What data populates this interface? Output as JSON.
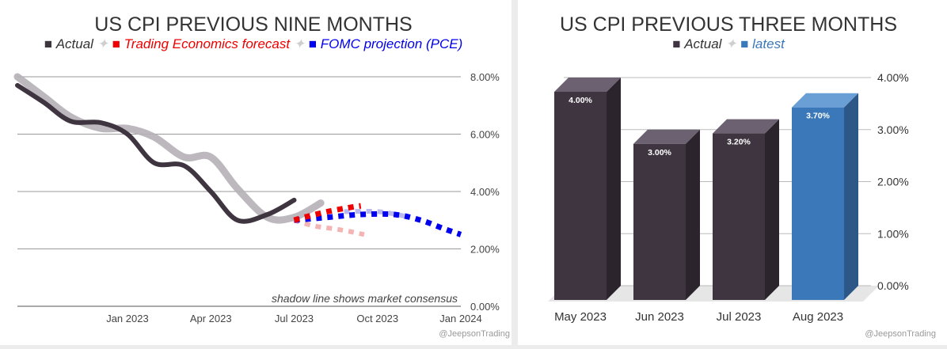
{
  "chart_data": [
    {
      "type": "line",
      "title": "US CPI PREVIOUS NINE MONTHS",
      "legend": [
        {
          "name": "Actual",
          "color": "#3f3540",
          "marker": "square"
        },
        {
          "name": "Trading Economics forecast",
          "color": "#ee0000",
          "marker": "square"
        },
        {
          "name": "FOMC projection (PCE)",
          "color": "#0000ee",
          "marker": "square"
        }
      ],
      "legend_separator": "✦",
      "x_domain": [
        2022.67,
        2024.0
      ],
      "xticks": [
        {
          "label": "Jan 2023",
          "x": 2023.0
        },
        {
          "label": "Apr 2023",
          "x": 2023.25
        },
        {
          "label": "Jul 2023",
          "x": 2023.5
        },
        {
          "label": "Oct 2023",
          "x": 2023.75
        },
        {
          "label": "Jan 2024",
          "x": 2024.0
        }
      ],
      "ylim": [
        0,
        8
      ],
      "yticks": [
        "0.00%",
        "2.00%",
        "4.00%",
        "6.00%",
        "8.00%"
      ],
      "ytick_values": [
        0,
        2,
        4,
        6,
        8
      ],
      "annotation": "shadow line shows market consensus",
      "watermark": "@JeepsonTrading",
      "series": [
        {
          "name": "Consensus (shadow)",
          "color": "#b5b0b6",
          "points": [
            [
              2022.67,
              8.0
            ],
            [
              2022.75,
              7.3
            ],
            [
              2022.83,
              6.6
            ],
            [
              2022.92,
              6.2
            ],
            [
              2023.0,
              6.2
            ],
            [
              2023.08,
              5.9
            ],
            [
              2023.17,
              5.2
            ],
            [
              2023.25,
              5.2
            ],
            [
              2023.33,
              4.1
            ],
            [
              2023.42,
              3.1
            ],
            [
              2023.5,
              3.1
            ],
            [
              2023.58,
              3.6
            ]
          ]
        },
        {
          "name": "Actual",
          "color": "#3f3540",
          "points": [
            [
              2022.67,
              7.7
            ],
            [
              2022.75,
              7.1
            ],
            [
              2022.83,
              6.45
            ],
            [
              2022.92,
              6.4
            ],
            [
              2023.0,
              6.0
            ],
            [
              2023.08,
              5.0
            ],
            [
              2023.17,
              4.9
            ],
            [
              2023.25,
              4.0
            ],
            [
              2023.33,
              3.0
            ],
            [
              2023.42,
              3.2
            ],
            [
              2023.5,
              3.7
            ]
          ]
        },
        {
          "name": "Trading Economics forecast",
          "color": "#ee0000",
          "points": [
            [
              2023.5,
              3.0
            ],
            [
              2023.53,
              3.1
            ],
            [
              2023.6,
              3.3
            ],
            [
              2023.67,
              3.45
            ],
            [
              2023.7,
              3.5
            ]
          ]
        },
        {
          "name": "Trading Economics forecast (consensus shadow)",
          "color": "#f5b4b4",
          "points": [
            [
              2023.5,
              3.0
            ],
            [
              2023.56,
              2.8
            ],
            [
              2023.62,
              2.7
            ],
            [
              2023.67,
              2.6
            ],
            [
              2023.71,
              2.5
            ]
          ]
        },
        {
          "name": "FOMC projection (PCE)",
          "color": "#0000ee",
          "points": [
            [
              2023.5,
              3.0
            ],
            [
              2023.6,
              3.1
            ],
            [
              2023.7,
              3.2
            ],
            [
              2023.8,
              3.2
            ],
            [
              2023.88,
              3.0
            ],
            [
              2023.95,
              2.7
            ],
            [
              2024.0,
              2.5
            ]
          ]
        },
        {
          "name": "FOMC projection (consensus shadow)",
          "color": "#b9b9f0",
          "points": [
            [
              2023.65,
              3.3
            ],
            [
              2023.75,
              3.3
            ],
            [
              2023.83,
              3.15
            ]
          ]
        }
      ]
    },
    {
      "type": "bar",
      "title": "US CPI PREVIOUS THREE MONTHS",
      "legend": [
        {
          "name": "Actual",
          "color": "#3f3540",
          "marker": "square"
        },
        {
          "name": "latest",
          "color": "#3b78ba",
          "marker": "square"
        }
      ],
      "legend_separator": "✦",
      "categories": [
        "May 2023",
        "Jun 2023",
        "Jul 2023",
        "Aug 2023"
      ],
      "values": [
        4.0,
        3.0,
        3.2,
        3.7
      ],
      "labels": [
        "4.00%",
        "3.00%",
        "3.20%",
        "3.70%"
      ],
      "series_of_bar": [
        "Actual",
        "Actual",
        "Actual",
        "latest"
      ],
      "ylim": [
        0,
        4
      ],
      "yticks": [
        "0.00%",
        "1.00%",
        "2.00%",
        "3.00%",
        "4.00%"
      ],
      "ytick_values": [
        0,
        1,
        2,
        3,
        4
      ],
      "watermark": "@JeepsonTrading"
    }
  ]
}
